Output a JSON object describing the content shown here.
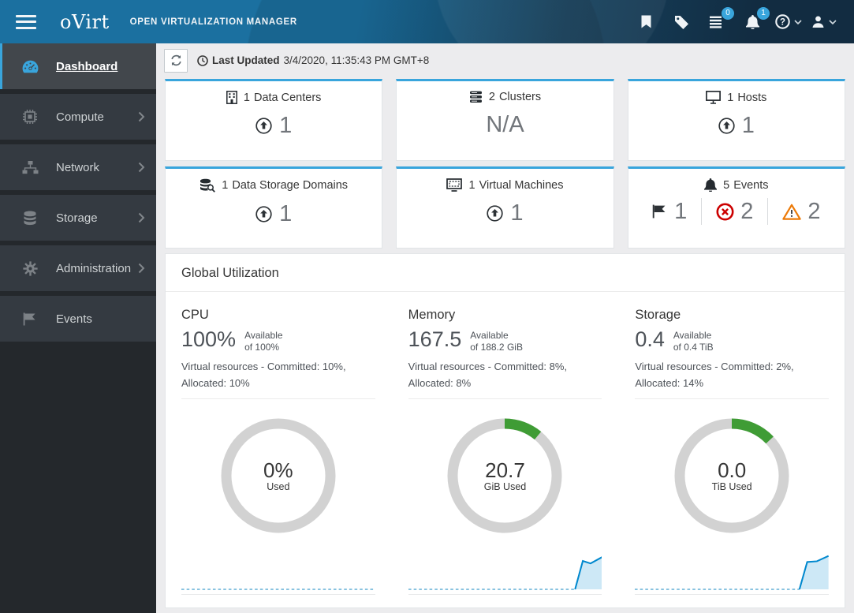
{
  "masthead": {
    "brand": "oVirt",
    "product_title": "OPEN VIRTUALIZATION MANAGER",
    "tasks_badge": "0",
    "notifications_badge": "1"
  },
  "sidebar": {
    "items": [
      {
        "label": "Dashboard",
        "icon": "tachometer-icon",
        "active": true,
        "has_submenu": false
      },
      {
        "label": "Compute",
        "icon": "microchip-icon",
        "active": false,
        "has_submenu": true
      },
      {
        "label": "Network",
        "icon": "sitemap-icon",
        "active": false,
        "has_submenu": true
      },
      {
        "label": "Storage",
        "icon": "database-icon",
        "active": false,
        "has_submenu": true
      },
      {
        "label": "Administration",
        "icon": "cog-icon",
        "active": false,
        "has_submenu": true
      },
      {
        "label": "Events",
        "icon": "flag-icon",
        "active": false,
        "has_submenu": false
      }
    ]
  },
  "toolbar": {
    "last_updated_label": "Last Updated",
    "last_updated_value": "3/4/2020, 11:35:43 PM GMT+8"
  },
  "status_cards": [
    {
      "count": "1",
      "label": "Data Centers",
      "icon": "building-icon",
      "value": "1",
      "value_icon": "arrow-circle-up-icon"
    },
    {
      "count": "2",
      "label": "Clusters",
      "icon": "cluster-icon",
      "value": "N/A",
      "value_icon": null
    },
    {
      "count": "1",
      "label": "Hosts",
      "icon": "monitor-icon",
      "value": "1",
      "value_icon": "arrow-circle-up-icon"
    },
    {
      "count": "1",
      "label": "Data Storage Domains",
      "icon": "storage-domain-search-icon",
      "value": "1",
      "value_icon": "arrow-circle-up-icon"
    },
    {
      "count": "1",
      "label": "Virtual Machines",
      "icon": "virtual-machine-icon",
      "value": "1",
      "value_icon": "arrow-circle-up-icon"
    },
    {
      "count": "5",
      "label": "Events",
      "icon": "bell-icon",
      "counts": [
        {
          "icon": "flag-icon",
          "value": "1"
        },
        {
          "icon": "error-circle-icon",
          "value": "2",
          "color": "#cc0000"
        },
        {
          "icon": "warning-triangle-icon",
          "value": "2",
          "color": "#ec7a08"
        }
      ]
    }
  ],
  "utilization": {
    "section_title": "Global Utilization",
    "columns": [
      {
        "title": "CPU",
        "available_value": "100%",
        "available_label": "Available",
        "available_of": "of 100%",
        "details": "Virtual resources - Committed: 10%, Allocated: 10%"
      },
      {
        "title": "Memory",
        "available_value": "167.5",
        "available_label": "Available",
        "available_of": "of 188.2 GiB",
        "details": "Virtual resources - Committed: 8%, Allocated: 8%"
      },
      {
        "title": "Storage",
        "available_value": "0.4",
        "available_label": "Available",
        "available_of": "of 0.4 TiB",
        "details": "Virtual resources - Committed: 2%, Allocated: 14%"
      }
    ]
  },
  "chart_data": {
    "donuts": [
      {
        "type": "donut",
        "name": "cpu-usage-donut",
        "center_value": "0%",
        "center_label": "Used",
        "used_percent": 0,
        "used_color": "#3f9c35",
        "rail_color": "#d2d2d2"
      },
      {
        "type": "donut",
        "name": "memory-usage-donut",
        "center_value": "20.7",
        "center_label": "GiB Used",
        "used_percent": 11,
        "used_color": "#3f9c35",
        "rail_color": "#d2d2d2"
      },
      {
        "type": "donut",
        "name": "storage-usage-donut",
        "center_value": "0.0",
        "center_label": "TiB Used",
        "used_percent": 13,
        "used_color": "#3f9c35",
        "rail_color": "#d2d2d2"
      }
    ],
    "sparklines": [
      {
        "type": "area",
        "name": "cpu-usage-history",
        "line_color": "#0088ce",
        "fill_color": "#cde8f6",
        "baseline_color": "#62afd6",
        "points": []
      },
      {
        "type": "area",
        "name": "memory-usage-history",
        "line_color": "#0088ce",
        "fill_color": "#cde8f6",
        "baseline_color": "#62afd6",
        "points": [
          [
            86,
            0
          ],
          [
            90,
            80
          ],
          [
            94,
            73
          ],
          [
            100,
            91
          ]
        ]
      },
      {
        "type": "area",
        "name": "storage-usage-history",
        "line_color": "#0088ce",
        "fill_color": "#cde8f6",
        "baseline_color": "#62afd6",
        "points": [
          [
            85,
            0
          ],
          [
            89,
            77
          ],
          [
            94,
            79
          ],
          [
            100,
            94
          ]
        ]
      }
    ]
  },
  "icons": {
    "masthead": [
      "hamburger-icon",
      "bookmark-icon",
      "tags-icon",
      "tasks-icon",
      "bell-icon",
      "question-circle-icon",
      "user-icon",
      "caret-down-icon"
    ],
    "sidebar": [
      "tachometer-icon",
      "microchip-icon",
      "sitemap-icon",
      "database-icon",
      "cog-icon",
      "flag-icon",
      "chevron-right-icon"
    ],
    "toolbar": [
      "refresh-icon",
      "clock-icon"
    ],
    "cards": [
      "building-icon",
      "cluster-icon",
      "monitor-icon",
      "storage-domain-search-icon",
      "virtual-machine-icon",
      "bell-icon",
      "arrow-circle-up-icon",
      "flag-icon",
      "error-circle-icon",
      "warning-triangle-icon"
    ]
  },
  "colors": {
    "masthead_left": "#1b70a0",
    "masthead_right": "#122c41",
    "badge_blue": "#39a5dc",
    "card_top_border": "#39a5dc",
    "active_nav_border": "#39a5dc",
    "used_green": "#3f9c35",
    "error_red": "#cc0000",
    "warning_orange": "#ec7a08",
    "spark_blue": "#0088ce"
  }
}
